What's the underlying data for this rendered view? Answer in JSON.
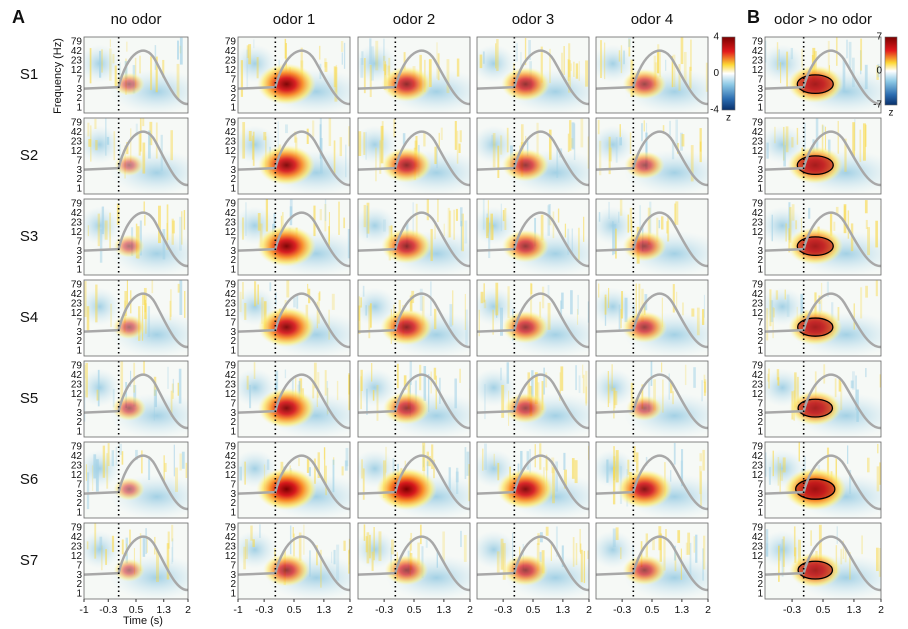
{
  "panel_labels": [
    "A",
    "B"
  ],
  "columns": [
    "no odor",
    "odor 1",
    "odor 2",
    "odor 3",
    "odor 4",
    "odor > no odor"
  ],
  "rows": [
    "S1",
    "S2",
    "S3",
    "S4",
    "S5",
    "S6",
    "S7"
  ],
  "y_axis": {
    "label": "Frequency (Hz)",
    "ticks": [
      79,
      42,
      23,
      12,
      7,
      3,
      2,
      1
    ]
  },
  "x_axis": {
    "label": "Time (s)",
    "ticks": [
      -1,
      -0.3,
      0.5,
      1.3,
      2
    ],
    "lim": [
      -1,
      2
    ]
  },
  "colorbars": [
    {
      "ticks": [
        4,
        0,
        -4
      ],
      "unit": "z"
    },
    {
      "ticks": [
        7,
        0,
        -7
      ],
      "unit": "z"
    }
  ]
}
